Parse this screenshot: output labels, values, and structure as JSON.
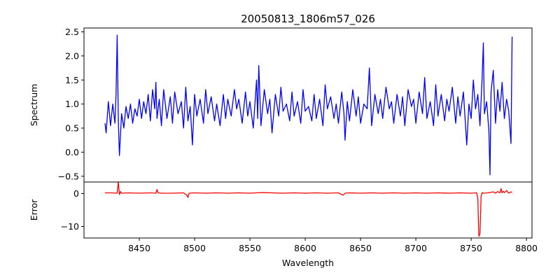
{
  "chart_data": [
    {
      "panel": "top",
      "type": "line",
      "title": "20050813_1806m57_026",
      "xlabel": "",
      "ylabel": "Spectrum",
      "xlim": [
        8400,
        8805
      ],
      "ylim": [
        -0.62,
        2.58
      ],
      "yticks": [
        -0.5,
        0.0,
        0.5,
        1.0,
        1.5,
        2.0,
        2.5
      ],
      "ytick_labels": [
        "−0.5",
        "0.0",
        "0.5",
        "1.0",
        "1.5",
        "2.0",
        "2.5"
      ],
      "grid": false,
      "series": [
        {
          "color": "#0000ff",
          "x": [
            8419,
            8420,
            8422,
            8424,
            8426,
            8428,
            8429,
            8430,
            8431,
            8432,
            8434,
            8436,
            8438,
            8440,
            8442,
            8444,
            8446,
            8448,
            8450,
            8452,
            8454,
            8456,
            8458,
            8460,
            8462,
            8464,
            8465,
            8466,
            8468,
            8470,
            8472,
            8475,
            8478,
            8480,
            8482,
            8485,
            8488,
            8490,
            8492,
            8494,
            8496,
            8498,
            8500,
            8502,
            8505,
            8508,
            8510,
            8512,
            8515,
            8518,
            8520,
            8523,
            8526,
            8528,
            8530,
            8533,
            8536,
            8538,
            8540,
            8543,
            8546,
            8548,
            8550,
            8553,
            8556,
            8557,
            8558,
            8560,
            8563,
            8566,
            8568,
            8570,
            8573,
            8576,
            8578,
            8580,
            8583,
            8586,
            8588,
            8590,
            8593,
            8596,
            8598,
            8600,
            8603,
            8606,
            8608,
            8610,
            8613,
            8616,
            8618,
            8620,
            8623,
            8626,
            8628,
            8630,
            8633,
            8635,
            8636,
            8638,
            8640,
            8643,
            8646,
            8648,
            8650,
            8653,
            8656,
            8658,
            8660,
            8663,
            8666,
            8668,
            8670,
            8673,
            8676,
            8678,
            8680,
            8683,
            8686,
            8688,
            8690,
            8693,
            8696,
            8698,
            8700,
            8703,
            8706,
            8708,
            8710,
            8713,
            8716,
            8718,
            8720,
            8723,
            8726,
            8728,
            8730,
            8733,
            8736,
            8738,
            8740,
            8743,
            8746,
            8748,
            8750,
            8752,
            8754,
            8756,
            8758,
            8760,
            8761,
            8762,
            8764,
            8766,
            8767,
            8768,
            8770,
            8772,
            8774,
            8776,
            8778,
            8780,
            8782,
            8784,
            8786,
            8787
          ],
          "y": [
            0.6,
            0.4,
            1.05,
            0.55,
            1.0,
            0.6,
            1.2,
            2.43,
            0.7,
            -0.07,
            0.8,
            0.5,
            0.95,
            0.7,
            1.0,
            0.6,
            0.9,
            0.75,
            1.1,
            0.7,
            1.05,
            0.8,
            1.2,
            0.65,
            1.3,
            0.9,
            1.45,
            0.7,
            1.1,
            0.55,
            1.3,
            0.7,
            1.15,
            0.6,
            1.25,
            0.8,
            1.05,
            0.5,
            1.35,
            0.65,
            0.95,
            0.15,
            1.2,
            0.75,
            1.1,
            0.6,
            1.3,
            0.8,
            1.15,
            0.65,
            1.0,
            0.55,
            1.2,
            0.7,
            1.1,
            0.75,
            1.3,
            0.9,
            1.1,
            0.6,
            1.25,
            0.75,
            1.05,
            0.5,
            1.5,
            0.7,
            1.8,
            0.55,
            1.3,
            0.8,
            1.1,
            0.4,
            1.2,
            0.75,
            1.35,
            0.85,
            1.0,
            0.65,
            1.25,
            0.75,
            1.05,
            0.6,
            1.3,
            0.85,
            0.95,
            0.65,
            1.2,
            0.7,
            1.1,
            0.55,
            1.4,
            0.9,
            1.15,
            0.7,
            1.0,
            0.6,
            1.25,
            0.8,
            0.25,
            1.05,
            0.65,
            1.3,
            0.75,
            1.15,
            0.6,
            1.0,
            0.9,
            1.75,
            0.55,
            1.2,
            0.8,
            1.1,
            0.7,
            1.35,
            0.9,
            1.05,
            0.6,
            1.2,
            0.75,
            1.15,
            0.55,
            1.3,
            0.95,
            1.1,
            0.6,
            1.25,
            0.8,
            1.55,
            0.7,
            1.05,
            0.55,
            1.4,
            0.75,
            1.2,
            0.65,
            1.1,
            0.85,
            1.35,
            0.6,
            1.15,
            0.75,
            1.25,
            0.15,
            1.0,
            0.7,
            1.5,
            0.9,
            1.2,
            0.55,
            1.6,
            2.27,
            0.8,
            1.05,
            0.45,
            -0.47,
            1.25,
            1.7,
            0.6,
            1.3,
            0.85,
            1.45,
            0.7,
            1.1,
            0.85,
            0.18,
            2.4
          ]
        }
      ]
    },
    {
      "panel": "bottom",
      "type": "line",
      "title": "",
      "xlabel": "Wavelength",
      "ylabel": "Error",
      "xlim": [
        8400,
        8805
      ],
      "ylim": [
        -13.5,
        3.5
      ],
      "xticks": [
        8450,
        8500,
        8550,
        8600,
        8650,
        8700,
        8750,
        8800
      ],
      "xtick_labels": [
        "8450",
        "8500",
        "8550",
        "8600",
        "8650",
        "8700",
        "8750",
        "8800"
      ],
      "yticks": [
        0,
        -10
      ],
      "ytick_labels": [
        "0",
        "−10"
      ],
      "grid": false,
      "series": [
        {
          "color": "#ff0000",
          "x": [
            8419,
            8425,
            8430,
            8431,
            8432,
            8433,
            8434,
            8440,
            8450,
            8460,
            8465,
            8466,
            8467,
            8470,
            8480,
            8490,
            8493,
            8494,
            8495,
            8500,
            8510,
            8520,
            8530,
            8540,
            8550,
            8560,
            8570,
            8580,
            8590,
            8600,
            8610,
            8620,
            8630,
            8634,
            8635,
            8636,
            8640,
            8650,
            8660,
            8670,
            8680,
            8690,
            8700,
            8710,
            8720,
            8730,
            8740,
            8750,
            8755,
            8756,
            8757,
            8758,
            8759,
            8760,
            8761,
            8765,
            8770,
            8772,
            8774,
            8776,
            8777,
            8778,
            8779,
            8780,
            8782,
            8784,
            8786,
            8787
          ],
          "y": [
            0.2,
            0.2,
            0.1,
            3.5,
            -0.3,
            0.6,
            0.1,
            0.2,
            0.1,
            0.2,
            0.1,
            1.2,
            0.2,
            0.1,
            0.1,
            0.2,
            -0.5,
            -1.2,
            0.1,
            0.2,
            0.1,
            0.2,
            0.1,
            0.2,
            0.1,
            0.3,
            0.2,
            0.1,
            0.2,
            0.1,
            0.2,
            0.1,
            0.2,
            -0.5,
            -0.3,
            0.1,
            0.2,
            0.1,
            0.2,
            0.1,
            0.2,
            0.1,
            0.2,
            0.1,
            0.2,
            0.1,
            0.2,
            0.1,
            0.2,
            -1.5,
            -13.0,
            -12.2,
            -0.8,
            0.3,
            0.1,
            0.2,
            0.5,
            0.1,
            0.6,
            0.2,
            1.5,
            0.2,
            0.7,
            0.3,
            0.9,
            0.1,
            0.5,
            0.3
          ]
        }
      ]
    }
  ]
}
